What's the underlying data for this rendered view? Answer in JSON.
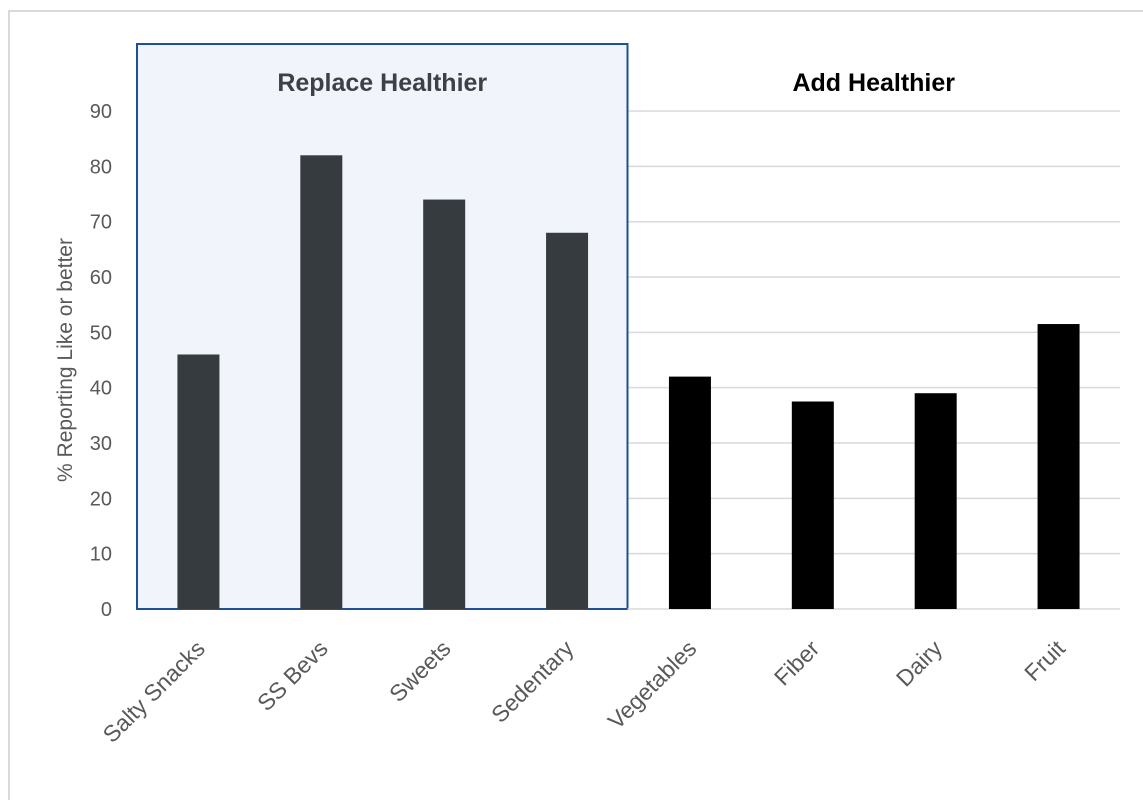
{
  "chart_data": {
    "type": "bar",
    "categories": [
      "Salty Snacks",
      "SS Bevs",
      "Sweets",
      "Sedentary",
      "Vegetables",
      "Fiber",
      "Dairy",
      "Fruit"
    ],
    "values": [
      46,
      82,
      74,
      68,
      42,
      37.5,
      39,
      51.5
    ],
    "group_labels": [
      "Replace Healthier",
      "Add Healthier"
    ],
    "groups": [
      {
        "label": "Replace Healthier",
        "categories": [
          "Salty Snacks",
          "SS Bevs",
          "Sweets",
          "Sedentary"
        ],
        "color": "#363b40",
        "boxed": true
      },
      {
        "label": "Add Healthier",
        "categories": [
          "Vegetables",
          "Fiber",
          "Dairy",
          "Fruit"
        ],
        "color": "#000000",
        "boxed": false
      }
    ],
    "ylabel": "% Reporting Like or better",
    "xlabel": "",
    "ylim": [
      0,
      100
    ],
    "yticks": [
      0,
      10,
      20,
      30,
      40,
      50,
      60,
      70,
      80,
      90
    ],
    "grid": true,
    "colors": {
      "replace_bar": "#363b40",
      "add_bar": "#000000",
      "box_border": "#1f5096",
      "box_fill": "#f1f5fb",
      "grid": "#d9d9d9",
      "tick_text": "#595959"
    }
  }
}
